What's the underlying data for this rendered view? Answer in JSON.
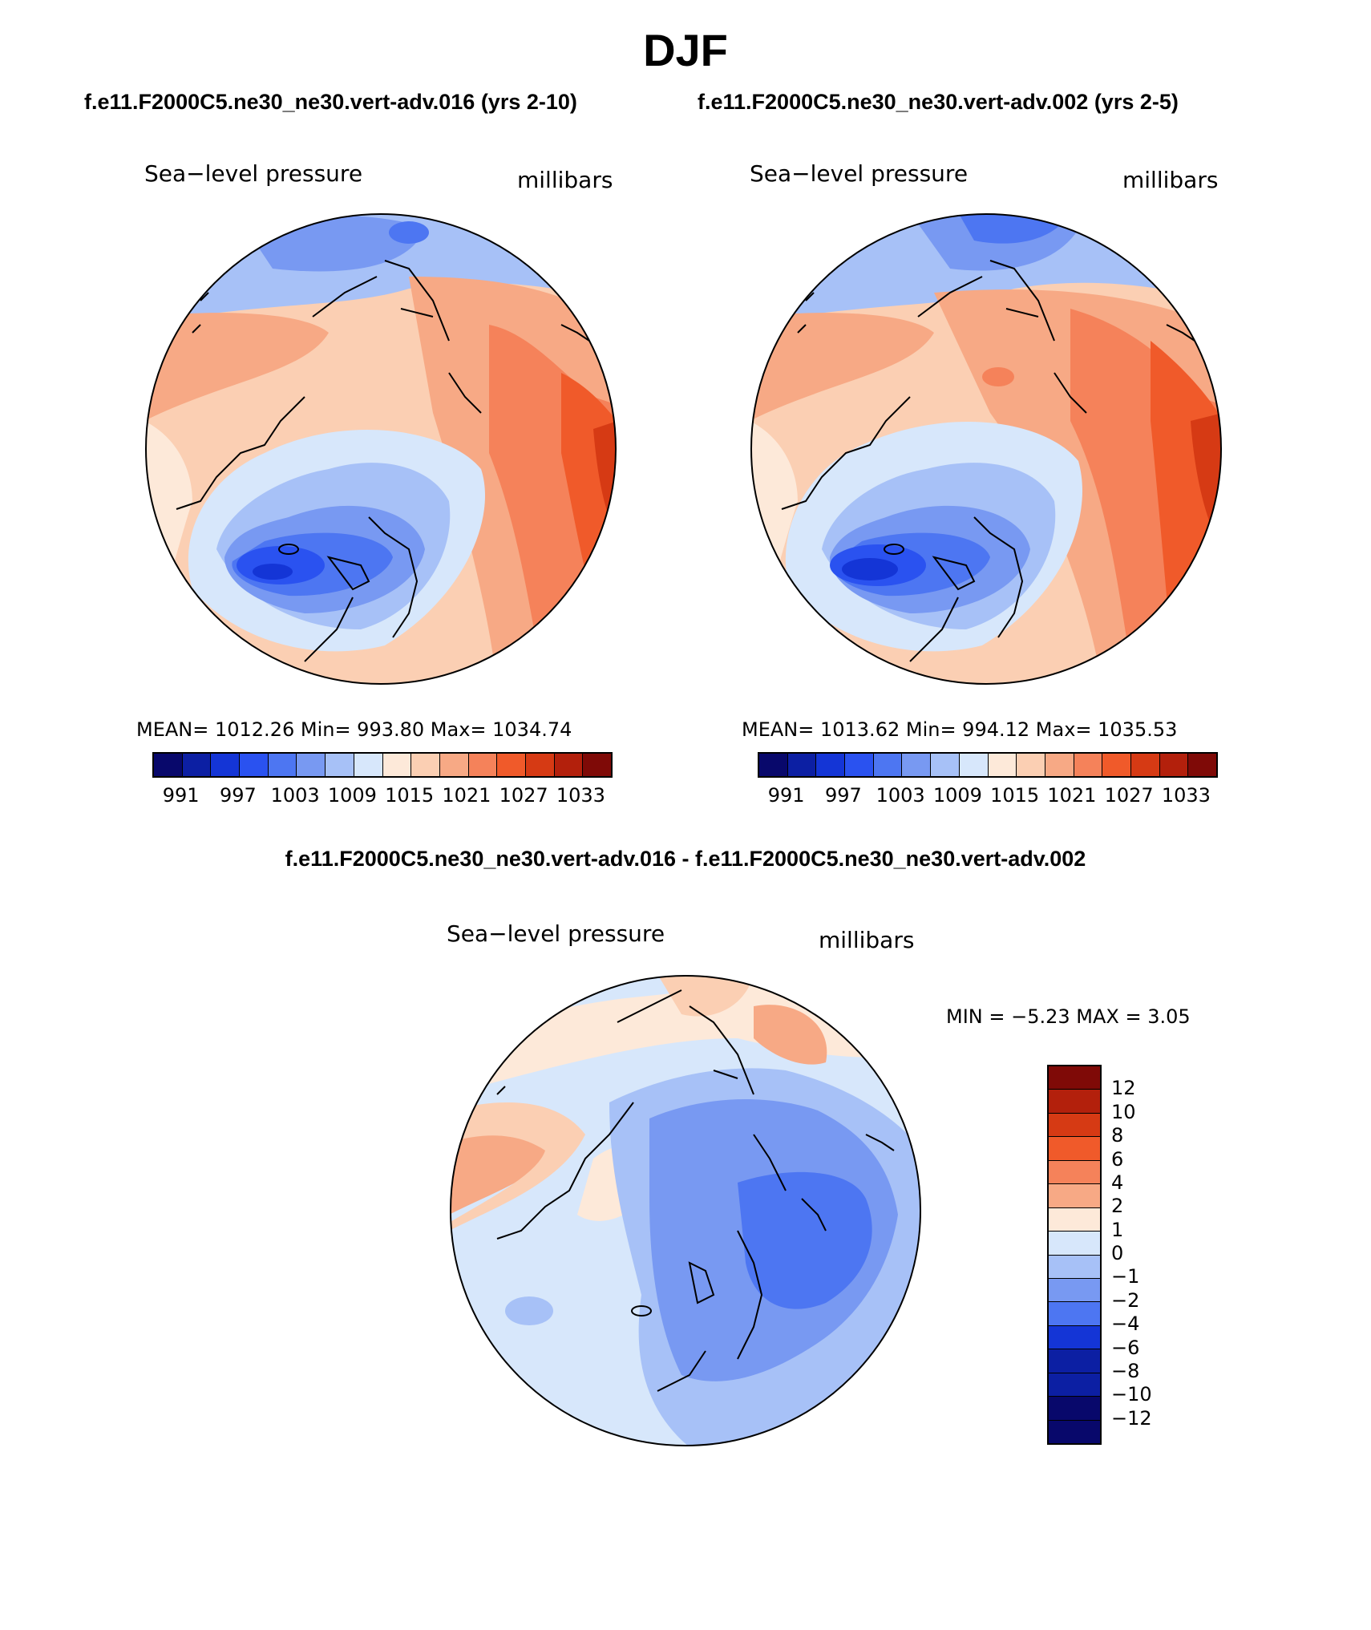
{
  "figure": {
    "title": "DJF",
    "case1_title": "f.e11.F2000C5.ne30_ne30.vert-adv.016 (yrs 2-10)",
    "case2_title": "f.e11.F2000C5.ne30_ne30.vert-adv.002 (yrs 2-5)",
    "diff_title": "f.e11.F2000C5.ne30_ne30.vert-adv.016 - f.e11.F2000C5.ne30_ne30.vert-adv.002"
  },
  "panels": [
    {
      "variable": "Sea−level pressure",
      "units": "millibars",
      "stats": "MEAN=  1012.26   Min=  993.80   Max=  1034.74"
    },
    {
      "variable": "Sea−level pressure",
      "units": "millibars",
      "stats": "MEAN=  1013.62   Min=  994.12   Max=  1035.53"
    }
  ],
  "diff_panel": {
    "variable": "Sea−level pressure",
    "units": "millibars",
    "minmax": "MIN =   −5.23 MAX =      3.05"
  },
  "colorbar_abs": {
    "colors": [
      "#08086b",
      "#0c1fa3",
      "#1435d6",
      "#2a52f0",
      "#4d76f2",
      "#7899f2",
      "#a7c1f7",
      "#d7e7fb",
      "#fde9d9",
      "#fbcfb3",
      "#f7a985",
      "#f5825a",
      "#f05a2a",
      "#d63a14",
      "#b3200c",
      "#7f0a07"
    ],
    "tick_labels": [
      "991",
      "997",
      "1003",
      "1009",
      "1015",
      "1021",
      "1027",
      "1033"
    ]
  },
  "colorbar_diff": {
    "colors": [
      "#7f0a07",
      "#b3200c",
      "#d63a14",
      "#f05a2a",
      "#f5825a",
      "#f7a985",
      "#fde9d9",
      "#d7e7fb",
      "#a7c1f7",
      "#7899f2",
      "#4d76f2",
      "#1435d6",
      "#0c1fa3",
      "#0c1fa3",
      "#08086b",
      "#08086b"
    ],
    "tick_labels": [
      "12",
      "10",
      "8",
      "6",
      "4",
      "2",
      "1",
      "0",
      "−1",
      "−2",
      "−4",
      "−6",
      "−8",
      "−10",
      "−12"
    ]
  }
}
